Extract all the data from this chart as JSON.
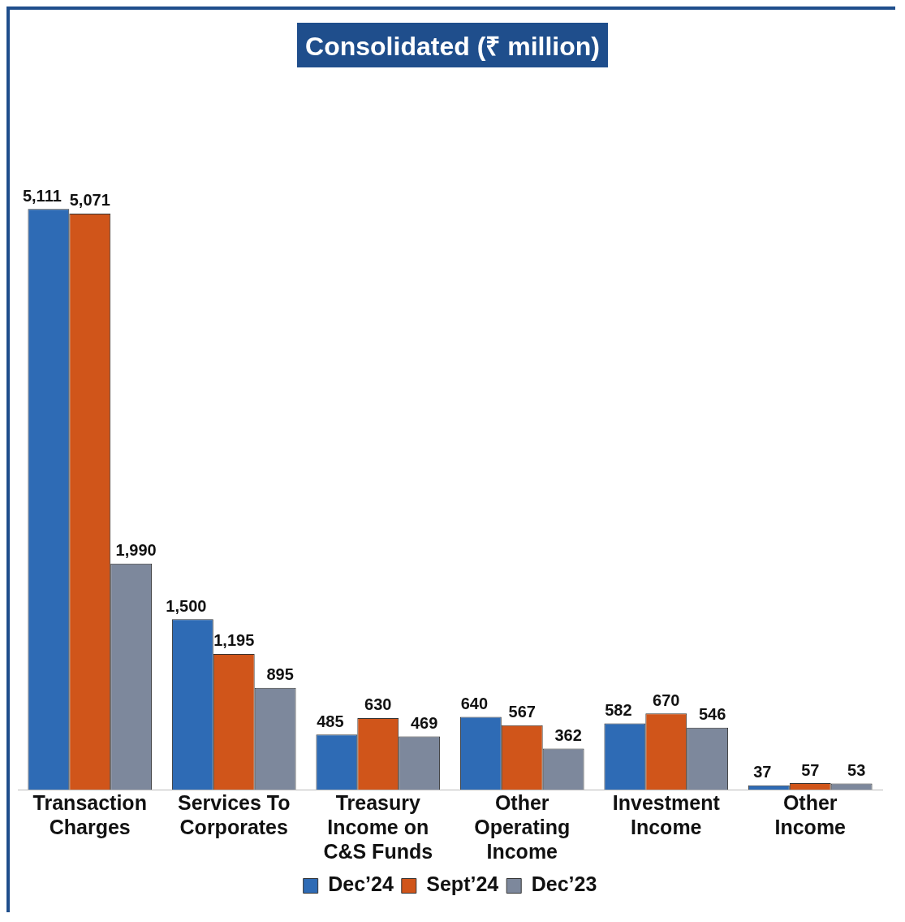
{
  "chart_data": {
    "type": "bar",
    "title": "Consolidated (₹ million)",
    "categories": [
      "Transaction Charges",
      "Services To Corporates",
      "Treasury Income on C&S Funds",
      "Other Operating Income",
      "Investment Income",
      "Other Income"
    ],
    "series": [
      {
        "name": "Dec’24",
        "color": "#2e6bb5",
        "values": [
          5111,
          1500,
          485,
          640,
          582,
          37
        ],
        "value_labels": [
          "5,111",
          "1,500",
          "485",
          "640",
          "582",
          "37"
        ]
      },
      {
        "name": "Sept’24",
        "color": "#d0551a",
        "values": [
          5071,
          1195,
          630,
          567,
          670,
          57
        ],
        "value_labels": [
          "5,071",
          "1,195",
          "630",
          "567",
          "670",
          "57"
        ]
      },
      {
        "name": "Dec’23",
        "color": "#7d889c",
        "values": [
          1990,
          895,
          469,
          362,
          546,
          53
        ],
        "value_labels": [
          "1,990",
          "895",
          "469",
          "362",
          "546",
          "53"
        ]
      }
    ],
    "legend": "bottom",
    "grid": false
  }
}
